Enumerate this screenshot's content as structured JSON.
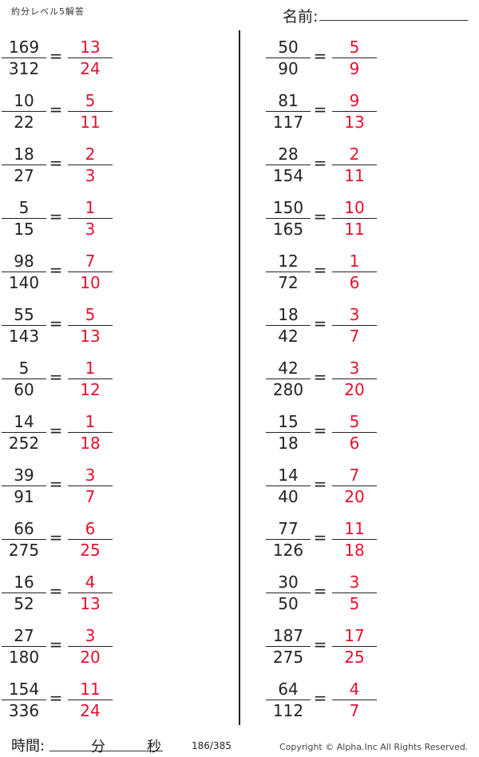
{
  "header": {
    "title": "約分レベル5解答",
    "name_label": "名前:"
  },
  "colors": {
    "answer": "#e8102e",
    "text": "#222222"
  },
  "problems_left": [
    {
      "num": "169",
      "den": "312",
      "ans_num": "13",
      "ans_den": "24"
    },
    {
      "num": "10",
      "den": "22",
      "ans_num": "5",
      "ans_den": "11"
    },
    {
      "num": "18",
      "den": "27",
      "ans_num": "2",
      "ans_den": "3"
    },
    {
      "num": "5",
      "den": "15",
      "ans_num": "1",
      "ans_den": "3"
    },
    {
      "num": "98",
      "den": "140",
      "ans_num": "7",
      "ans_den": "10"
    },
    {
      "num": "55",
      "den": "143",
      "ans_num": "5",
      "ans_den": "13"
    },
    {
      "num": "5",
      "den": "60",
      "ans_num": "1",
      "ans_den": "12"
    },
    {
      "num": "14",
      "den": "252",
      "ans_num": "1",
      "ans_den": "18"
    },
    {
      "num": "39",
      "den": "91",
      "ans_num": "3",
      "ans_den": "7"
    },
    {
      "num": "66",
      "den": "275",
      "ans_num": "6",
      "ans_den": "25"
    },
    {
      "num": "16",
      "den": "52",
      "ans_num": "4",
      "ans_den": "13"
    },
    {
      "num": "27",
      "den": "180",
      "ans_num": "3",
      "ans_den": "20"
    },
    {
      "num": "154",
      "den": "336",
      "ans_num": "11",
      "ans_den": "24"
    }
  ],
  "problems_right": [
    {
      "num": "50",
      "den": "90",
      "ans_num": "5",
      "ans_den": "9"
    },
    {
      "num": "81",
      "den": "117",
      "ans_num": "9",
      "ans_den": "13"
    },
    {
      "num": "28",
      "den": "154",
      "ans_num": "2",
      "ans_den": "11"
    },
    {
      "num": "150",
      "den": "165",
      "ans_num": "10",
      "ans_den": "11"
    },
    {
      "num": "12",
      "den": "72",
      "ans_num": "1",
      "ans_den": "6"
    },
    {
      "num": "18",
      "den": "42",
      "ans_num": "3",
      "ans_den": "7"
    },
    {
      "num": "42",
      "den": "280",
      "ans_num": "3",
      "ans_den": "20"
    },
    {
      "num": "15",
      "den": "18",
      "ans_num": "5",
      "ans_den": "6"
    },
    {
      "num": "14",
      "den": "40",
      "ans_num": "7",
      "ans_den": "20"
    },
    {
      "num": "77",
      "den": "126",
      "ans_num": "11",
      "ans_den": "18"
    },
    {
      "num": "30",
      "den": "50",
      "ans_num": "3",
      "ans_den": "5"
    },
    {
      "num": "187",
      "den": "275",
      "ans_num": "17",
      "ans_den": "25"
    },
    {
      "num": "64",
      "den": "112",
      "ans_num": "4",
      "ans_den": "7"
    }
  ],
  "equals": "=",
  "footer": {
    "time_label": "時間:",
    "minutes": "分",
    "seconds": "秒",
    "page": "186/385",
    "copyright": "Copyright ©  Alpha.Inc All Rights Reserved."
  }
}
